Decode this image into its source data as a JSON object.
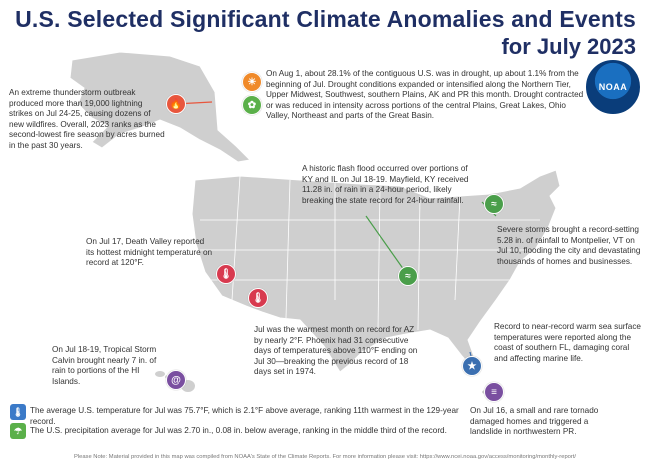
{
  "title_line1": "U.S. Selected Significant Climate Anomalies and Events",
  "title_line2": "for July 2023",
  "logo_text": "NOAA",
  "events": {
    "alaska": "An extreme thunderstorm outbreak produced more than 19,000 lightning strikes on Jul 24-25, causing dozens of new wildfires. Overall, 2023 ranks as the second-lowest fire season by acres burned in the past 30 years.",
    "drought": "On Aug 1, about 28.1% of the contiguous U.S. was in drought, up about 1.1% from the beginning of Jul. Drought conditions expanded or intensified along the Northern Tier, Upper Midwest, Southwest, southern Plains, AK and PR this month. Drought contracted or was reduced in intensity across portions of the central Plains, Great Lakes, Ohio Valley, Northeast and parts of the Great Basin.",
    "kentucky": "A historic flash flood occurred over portions of KY and IL on Jul 18-19. Mayfield, KY received 11.28 in. of rain in a 24-hour period, likely breaking the state record for 24-hour rainfall.",
    "vermont": "Severe storms brought a record-setting 5.28 in. of rainfall to Montpelier, VT on Jul 10, flooding the city and devastating thousands of homes and businesses.",
    "deathvalley": "On Jul 17, Death Valley reported its hottest midnight temperature on record at 120°F.",
    "arizona": "Jul was the warmest month on record for AZ by nearly 2°F. Phoenix had 31 consecutive days of temperatures above 110°F ending on Jul 30—breaking the previous record of 18 days set in 1974.",
    "hawaii": "On Jul 18-19, Tropical Storm Calvin brought nearly 7 in. of rain to portions of the HI Islands.",
    "florida": "Record to near-record warm sea surface temperatures were reported along the coast of southern FL, damaging coral and affecting marine life.",
    "pr": "On Jul 16, a small and rare tornado damaged homes and triggered a landslide in northwestern PR.",
    "national_temp": "The average U.S. temperature for Jul was 75.7°F, which is 2.1°F above average, ranking 11th warmest in the 129-year record.",
    "national_precip": "The U.S. precipitation average for Jul was 2.70 in., 0.08 in. below average, ranking in the middle third of the record."
  },
  "footer": "Please Note: Material provided in this map was compiled from NOAA's State of the Climate Reports. For more information please visit: https://www.ncei.noaa.gov/access/monitoring/monthly-report/",
  "colors": {
    "title": "#1f2f64",
    "fire": "#e8563d",
    "drought_orange": "#f08a2a",
    "drought_green": "#5bb04a",
    "flood": "#4a9e4a",
    "heat": "#d83a4f",
    "storm": "#7a4fa0",
    "marine": "#3b6fb0",
    "map_gray": "#cfcfcf"
  }
}
